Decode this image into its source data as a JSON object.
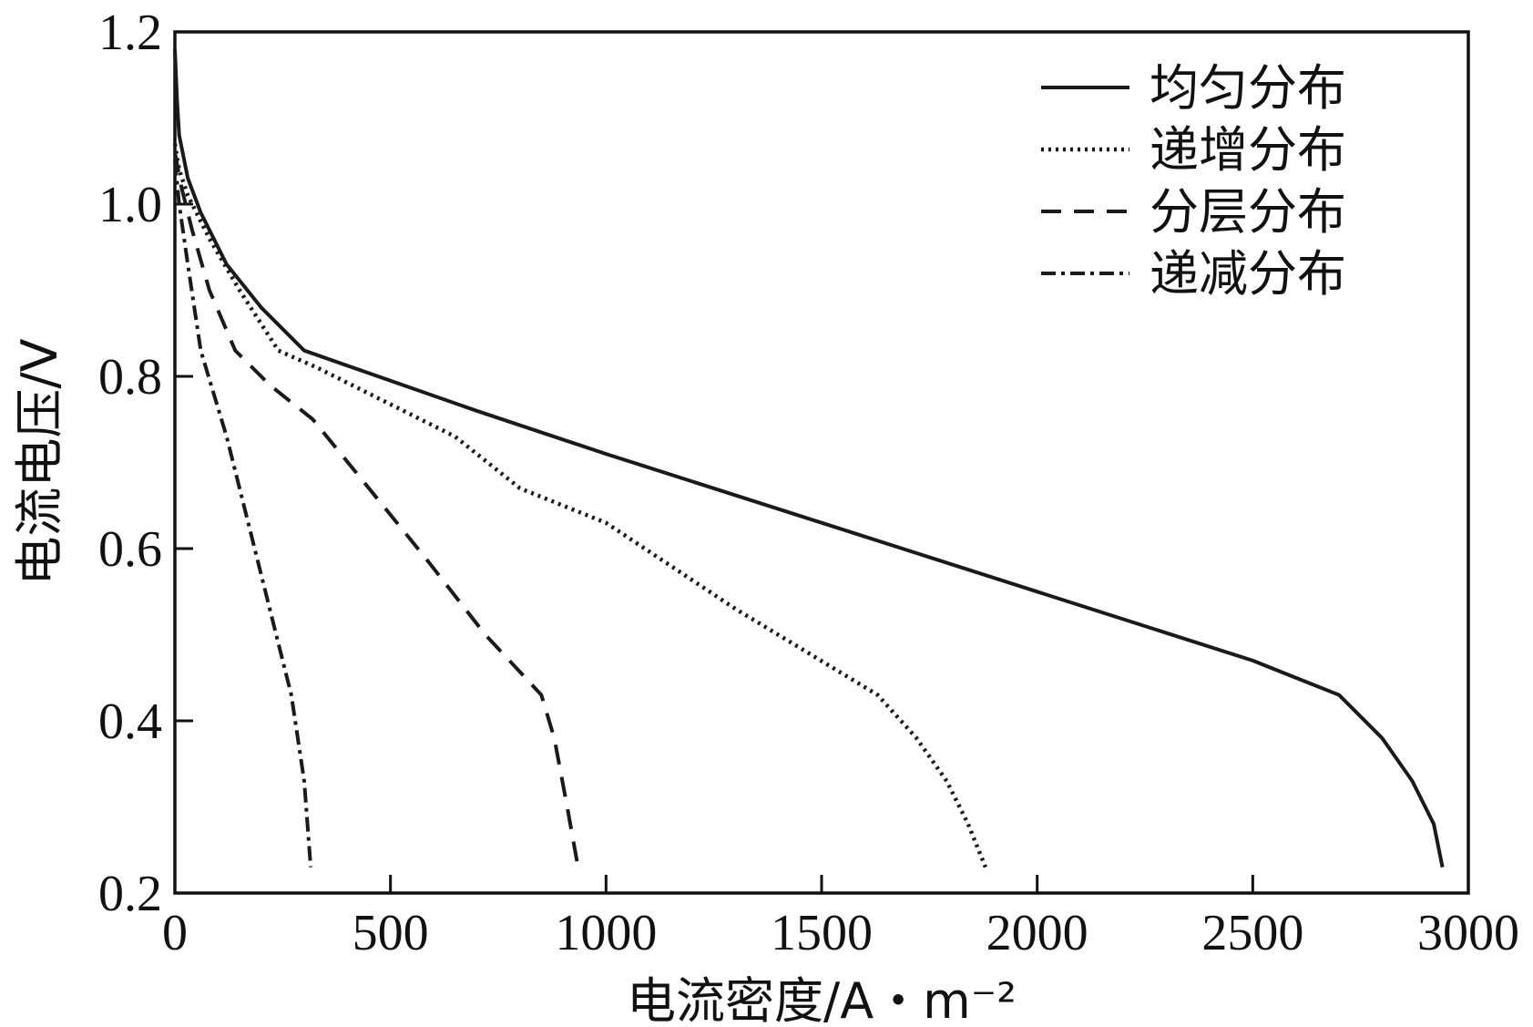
{
  "chart_data": {
    "type": "line",
    "title": "",
    "xlabel": "电流密度/A・m⁻²",
    "ylabel": "电流电压/V",
    "xlim": [
      0,
      3000
    ],
    "ylim": [
      0.2,
      1.2
    ],
    "xticks": [
      0,
      500,
      1000,
      1500,
      2000,
      2500,
      3000
    ],
    "yticks": [
      0.2,
      0.4,
      0.6,
      0.8,
      1.0,
      1.2
    ],
    "xtick_labels": [
      "0",
      "500",
      "1000",
      "1500",
      "2000",
      "2500",
      "3000"
    ],
    "ytick_labels": [
      "0.2",
      "0.4",
      "0.6",
      "0.8",
      "1.0",
      "1.2"
    ],
    "grid": false,
    "legend_position": "top-right",
    "series": [
      {
        "name": "均匀分布",
        "style": "solid",
        "color": "#1a1a1a",
        "x": [
          0,
          5,
          10,
          30,
          60,
          120,
          200,
          300,
          700,
          1000,
          1500,
          2000,
          2500,
          2700,
          2800,
          2870,
          2920,
          2940
        ],
        "y": [
          1.18,
          1.12,
          1.08,
          1.03,
          0.99,
          0.93,
          0.88,
          0.83,
          0.76,
          0.71,
          0.63,
          0.55,
          0.47,
          0.43,
          0.38,
          0.33,
          0.28,
          0.23
        ]
      },
      {
        "name": "递增分布",
        "style": "dotted",
        "color": "#1a1a1a",
        "x": [
          0,
          10,
          30,
          80,
          150,
          240,
          330,
          450,
          650,
          800,
          1000,
          1300,
          1630,
          1720,
          1790,
          1840,
          1880
        ],
        "y": [
          1.07,
          1.04,
          1.01,
          0.96,
          0.9,
          0.83,
          0.81,
          0.78,
          0.73,
          0.67,
          0.63,
          0.53,
          0.43,
          0.38,
          0.33,
          0.28,
          0.23
        ]
      },
      {
        "name": "分层分布",
        "style": "dashed",
        "color": "#1a1a1a",
        "x": [
          0,
          15,
          40,
          80,
          140,
          220,
          320,
          450,
          580,
          720,
          850,
          880,
          910,
          935
        ],
        "y": [
          1.06,
          1.02,
          0.97,
          0.9,
          0.83,
          0.79,
          0.75,
          0.67,
          0.59,
          0.5,
          0.43,
          0.38,
          0.3,
          0.23
        ]
      },
      {
        "name": "递减分布",
        "style": "dashdot",
        "color": "#1a1a1a",
        "x": [
          0,
          10,
          30,
          60,
          120,
          180,
          240,
          270,
          300,
          315
        ],
        "y": [
          1.05,
          1.0,
          0.93,
          0.83,
          0.73,
          0.61,
          0.49,
          0.43,
          0.33,
          0.23
        ]
      }
    ]
  }
}
